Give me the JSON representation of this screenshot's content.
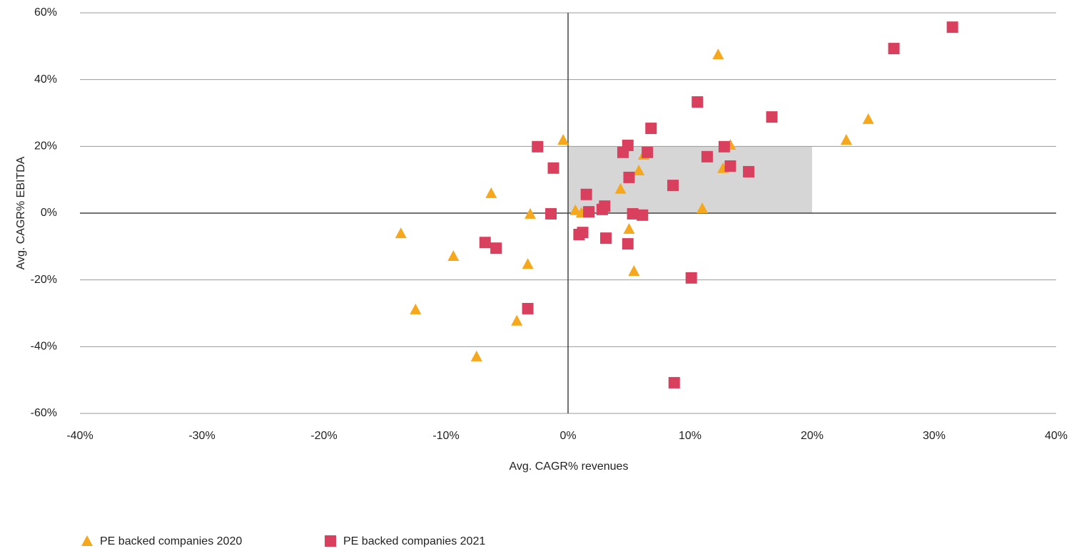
{
  "chart_data": {
    "type": "scatter",
    "xlabel": "Avg. CAGR% revenues",
    "ylabel": "Avg. CAGR% EBITDA",
    "xlim": [
      -40,
      40
    ],
    "ylim": [
      -60,
      60
    ],
    "xticks": [
      {
        "value": -40,
        "label": "-40%"
      },
      {
        "value": -30,
        "label": "-30%"
      },
      {
        "value": -20,
        "label": "-20%"
      },
      {
        "value": -10,
        "label": "-10%"
      },
      {
        "value": 0,
        "label": "0%"
      },
      {
        "value": 10,
        "label": "10%"
      },
      {
        "value": 20,
        "label": "20%"
      },
      {
        "value": 30,
        "label": "30%"
      },
      {
        "value": 40,
        "label": "40%"
      }
    ],
    "yticks": [
      {
        "value": -60,
        "label": "-60%"
      },
      {
        "value": -40,
        "label": "-40%"
      },
      {
        "value": -20,
        "label": "-20%"
      },
      {
        "value": 0,
        "label": "0%"
      },
      {
        "value": 20,
        "label": "20%"
      },
      {
        "value": 40,
        "label": "40%"
      },
      {
        "value": 60,
        "label": "60%"
      }
    ],
    "grid": true,
    "highlight": {
      "x": [
        0,
        20
      ],
      "y": [
        0,
        20
      ],
      "color": "#d6d6d6"
    },
    "legend": "bottom-left",
    "series": [
      {
        "name": "PE backed companies 2020",
        "color": "#f5a81e",
        "marker": "triangle",
        "x": [
          -13.7,
          -9.4,
          -6.3,
          -12.5,
          -7.5,
          -4.2,
          -3.3,
          -3.1,
          -0.4,
          0.6,
          1.1,
          4.3,
          5.0,
          5.4,
          5.8,
          6.2,
          11.0,
          12.3,
          12.7,
          13.3,
          22.8,
          24.6
        ],
        "values": [
          -6.0,
          -12.8,
          6.0,
          -28.8,
          -42.9,
          -32.2,
          -15.2,
          -0.2,
          22.0,
          0.9,
          0.2,
          7.3,
          -4.7,
          -17.3,
          12.8,
          17.5,
          1.5,
          47.6,
          13.5,
          20.5,
          22.0,
          28.2
        ]
      },
      {
        "name": "PE backed companies 2021",
        "color": "#d8405e",
        "marker": "square",
        "x": [
          -2.5,
          -1.2,
          -1.4,
          -6.8,
          -5.9,
          -3.3,
          1.5,
          1.7,
          0.9,
          1.2,
          2.8,
          3.0,
          3.1,
          4.9,
          5.0,
          4.5,
          4.9,
          5.3,
          6.1,
          6.5,
          6.8,
          8.6,
          8.7,
          10.1,
          10.6,
          11.4,
          12.8,
          13.3,
          14.8,
          16.7,
          26.7,
          31.5
        ],
        "values": [
          19.9,
          13.5,
          -0.2,
          -8.8,
          -10.5,
          -28.6,
          5.6,
          0.4,
          -6.4,
          -5.8,
          1.1,
          2.1,
          -7.5,
          -9.2,
          10.7,
          18.2,
          20.3,
          -0.2,
          -0.6,
          18.2,
          25.4,
          8.3,
          -50.8,
          -19.4,
          33.3,
          16.9,
          19.9,
          14.1,
          12.4,
          28.8,
          49.3,
          55.7
        ]
      }
    ]
  }
}
